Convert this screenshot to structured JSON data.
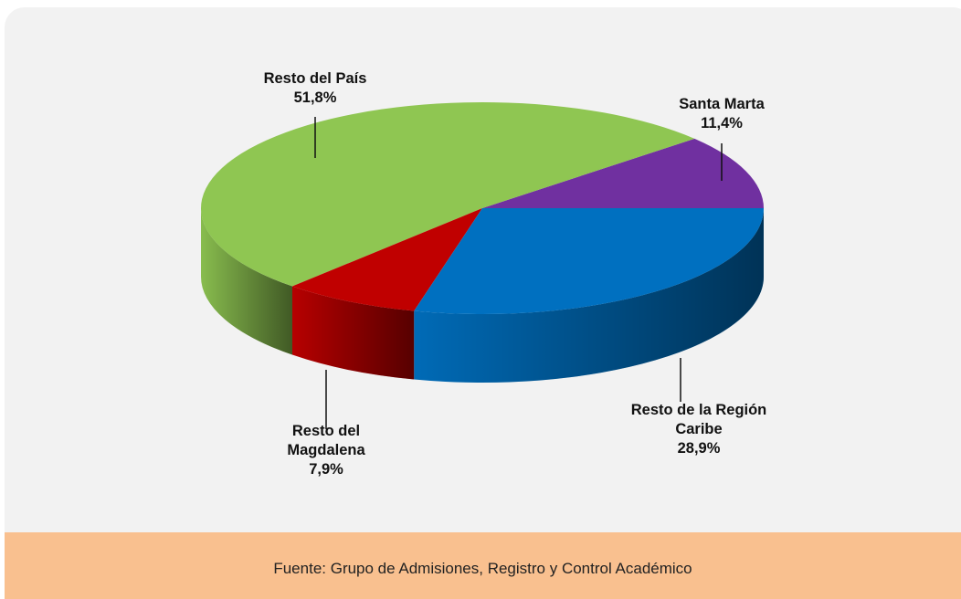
{
  "chart_data": {
    "type": "pie3d",
    "categories": [
      "Santa Marta",
      "Resto del País",
      "Resto del Magdalena",
      "Resto de la Región Caribe"
    ],
    "values": [
      11.4,
      51.8,
      7.9,
      28.9
    ],
    "value_labels": [
      "11,4%",
      "51,8%",
      "7,9%",
      "28,9%"
    ],
    "colors": [
      "#7030a0",
      "#8fc652",
      "#c00000",
      "#0070c0"
    ],
    "source": "Fuente: Grupo de Admisiones, Registro y Control Académico"
  }
}
